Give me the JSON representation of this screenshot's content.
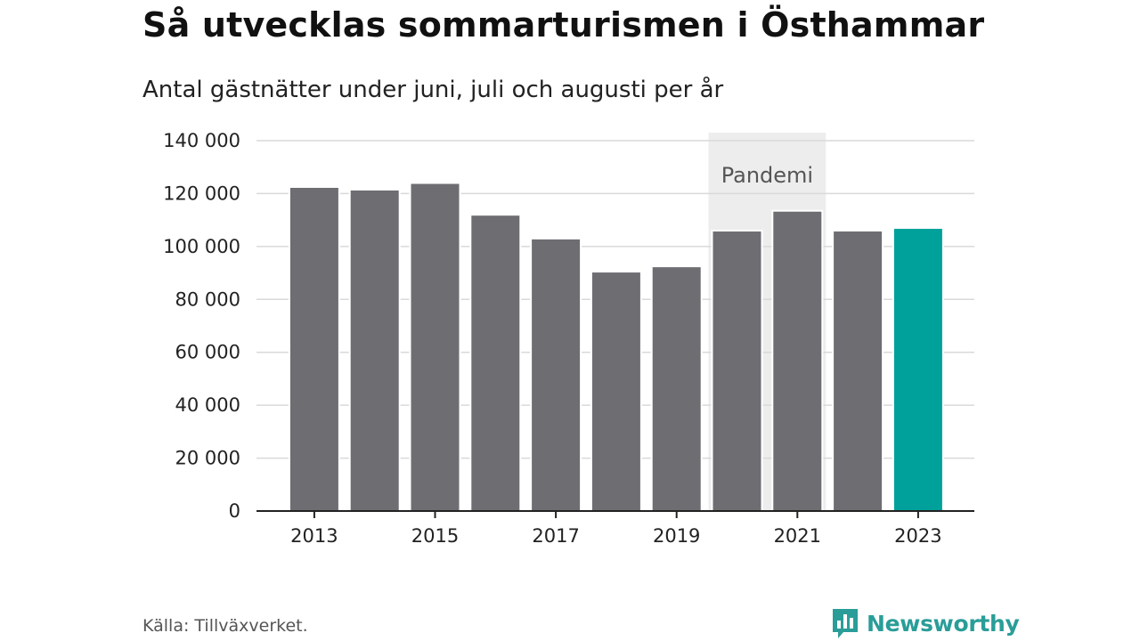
{
  "chart_data": {
    "type": "bar",
    "title": "Så utvecklas sommarturismen i Östhammar",
    "subtitle": "Antal gästnätter under juni, juli och augusti per år",
    "categories": [
      "2013",
      "2014",
      "2015",
      "2016",
      "2017",
      "2018",
      "2019",
      "2020",
      "2021",
      "2022",
      "2023"
    ],
    "values": [
      122500,
      121500,
      124000,
      112000,
      103000,
      90500,
      92500,
      106000,
      113500,
      106000,
      107000
    ],
    "x_tick_labels": [
      "2013",
      "2015",
      "2017",
      "2019",
      "2021",
      "2023"
    ],
    "ylim": [
      0,
      140000
    ],
    "y_ticks": [
      0,
      20000,
      40000,
      60000,
      80000,
      100000,
      120000,
      140000
    ],
    "y_tick_labels": [
      "0",
      "20 000",
      "40 000",
      "60 000",
      "80 000",
      "100 000",
      "120 000",
      "140 000"
    ],
    "grid": true,
    "highlight_category": "2023",
    "annotation": {
      "label": "Pandemi",
      "start": "2020",
      "end": "2021"
    },
    "colors": {
      "bar": "#6e6d72",
      "highlight": "#00a19a",
      "band": "#ededed",
      "grid": "#d9d9d9",
      "axis": "#222222"
    }
  },
  "footer": {
    "source": "Källa: Tillväxverket.",
    "brand": "Newsworthy"
  },
  "brand_icon": "newsworthy-bar-chart-bubble-icon"
}
